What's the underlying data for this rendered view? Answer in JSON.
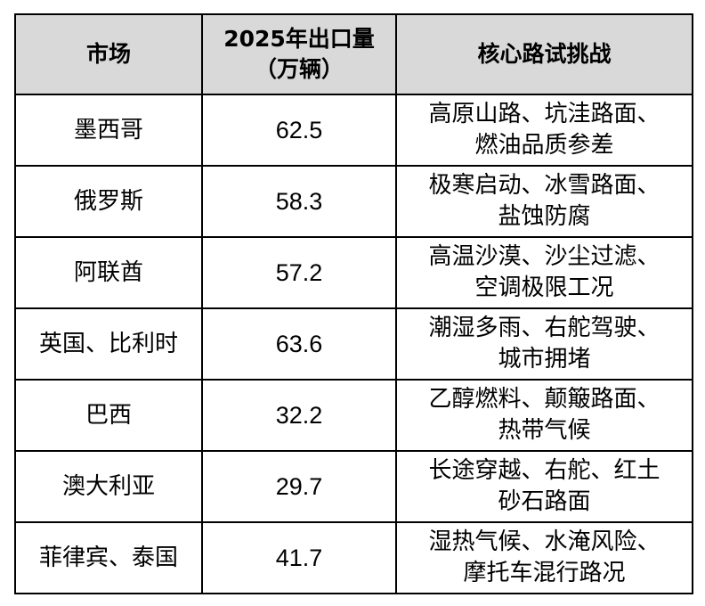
{
  "table": {
    "headers": {
      "market": "市场",
      "exports_line1": "2025年出口量",
      "exports_line2": "（万辆）",
      "challenges": "核心路试挑战"
    },
    "rows": [
      {
        "market": "墨西哥",
        "exports": "62.5",
        "challenge_line1": "高原山路、坑洼路面、",
        "challenge_line2": "燃油品质参差"
      },
      {
        "market": "俄罗斯",
        "exports": "58.3",
        "challenge_line1": "极寒启动、冰雪路面、",
        "challenge_line2": "盐蚀防腐"
      },
      {
        "market": "阿联酋",
        "exports": "57.2",
        "challenge_line1": "高温沙漠、沙尘过滤、",
        "challenge_line2": "空调极限工况"
      },
      {
        "market": "英国、比利时",
        "exports": "63.6",
        "challenge_line1": "潮湿多雨、右舵驾驶、",
        "challenge_line2": "城市拥堵"
      },
      {
        "market": "巴西",
        "exports": "32.2",
        "challenge_line1": "乙醇燃料、颠簸路面、",
        "challenge_line2": "热带气候"
      },
      {
        "market": "澳大利亚",
        "exports": "29.7",
        "challenge_line1": "长途穿越、右舵、红土",
        "challenge_line2": "砂石路面"
      },
      {
        "market": "菲律宾、泰国",
        "exports": "41.7",
        "challenge_line1": "湿热气候、水淹风险、",
        "challenge_line2": "摩托车混行路况"
      }
    ]
  }
}
